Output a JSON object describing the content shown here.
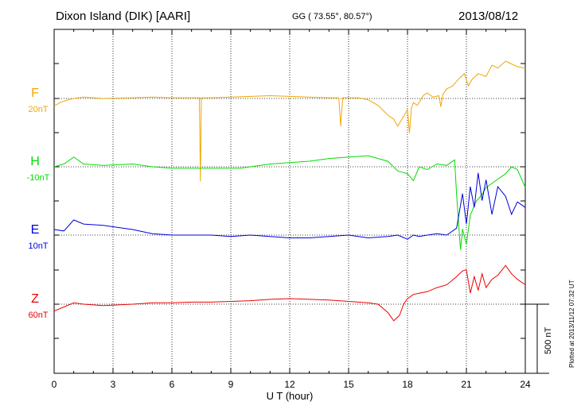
{
  "header": {
    "station": "Dixon Island (DIK)  [AARI]",
    "coords": "GG ( 73.55°,  80.57°)",
    "date": "2013/08/12",
    "plotted": "Plotted at 2013/11/12 07:32 UT"
  },
  "chart_data": {
    "type": "line",
    "title": "Dixon Island (DIK)  [AARI]",
    "xlabel": "U T (hour)",
    "ylabel": "",
    "xlim": [
      0,
      24
    ],
    "xticks": [
      "0",
      "3",
      "6",
      "9",
      "12",
      "15",
      "18",
      "21",
      "24"
    ],
    "grid": true,
    "scale_bar_label": "500 nT",
    "scale_bar_nT": 500,
    "series": [
      {
        "name": "F",
        "offset": "20nT",
        "color": "#f0a800",
        "baseline_nT": 0,
        "x": [
          0,
          0.3,
          0.7,
          1.0,
          1.5,
          2.5,
          4,
          5,
          6,
          7,
          7.4,
          7.45,
          7.5,
          8,
          9,
          10,
          11,
          12,
          13,
          14,
          14.5,
          14.6,
          14.7,
          15,
          15.5,
          16,
          16.5,
          17,
          17.3,
          17.5,
          17.8,
          18.0,
          18.1,
          18.2,
          18.3,
          18.5,
          18.8,
          19.0,
          19.3,
          19.6,
          19.7,
          19.8,
          20.0,
          20.3,
          20.6,
          20.9,
          21.1,
          21.3,
          21.6,
          22.0,
          22.3,
          22.6,
          23.0,
          23.3,
          23.6,
          24
        ],
        "y": [
          -55,
          -30,
          -10,
          0,
          10,
          0,
          5,
          10,
          5,
          5,
          5,
          -600,
          5,
          5,
          10,
          15,
          20,
          15,
          10,
          5,
          5,
          -200,
          5,
          5,
          5,
          -10,
          -50,
          -120,
          -150,
          -200,
          -130,
          -80,
          -250,
          -70,
          -30,
          -50,
          20,
          40,
          10,
          20,
          -60,
          30,
          70,
          90,
          140,
          180,
          90,
          140,
          180,
          160,
          240,
          220,
          270,
          250,
          230,
          220
        ]
      },
      {
        "name": "H",
        "offset": "-10nT",
        "color": "#00dd00",
        "baseline_nT": -1000,
        "x": [
          0,
          0.5,
          1.0,
          1.5,
          2.5,
          4,
          5,
          6,
          7,
          8,
          9,
          9.5,
          10,
          11,
          12,
          13,
          14,
          15,
          16,
          16.5,
          17,
          17.5,
          18.0,
          18.3,
          18.6,
          19,
          19.5,
          20,
          20.4,
          20.5,
          20.6,
          20.7,
          20.8,
          21.0,
          21.2,
          21.5,
          21.8,
          22.0,
          22.5,
          23,
          23.3,
          23.6,
          24
        ],
        "y": [
          -1000,
          -980,
          -930,
          -980,
          -990,
          -980,
          -1000,
          -1010,
          -1010,
          -1010,
          -1010,
          -1010,
          -1000,
          -980,
          -970,
          -960,
          -940,
          -930,
          -920,
          -940,
          -960,
          -1030,
          -1050,
          -1100,
          -1000,
          -1020,
          -980,
          -990,
          -950,
          -1200,
          -1400,
          -1600,
          -1450,
          -1560,
          -1350,
          -1250,
          -1200,
          -1150,
          -1100,
          -1050,
          -1000,
          -1020,
          -1150
        ]
      },
      {
        "name": "E",
        "offset": "10nT",
        "color": "#0000dd",
        "baseline_nT": -2000,
        "x": [
          0,
          0.5,
          1.0,
          1.5,
          2.5,
          4,
          5,
          6,
          7,
          8,
          9,
          10,
          11,
          12,
          13,
          14,
          15,
          16,
          17,
          17.5,
          18.0,
          18.3,
          18.6,
          19,
          19.5,
          20,
          20.5,
          20.8,
          21.0,
          21.2,
          21.4,
          21.6,
          21.8,
          22,
          22.3,
          22.6,
          23,
          23.3,
          23.6,
          24
        ],
        "y": [
          -1960,
          -1970,
          -1890,
          -1920,
          -1930,
          -1960,
          -1990,
          -2000,
          -2000,
          -2000,
          -2010,
          -2000,
          -2010,
          -2020,
          -2020,
          -2010,
          -2000,
          -2020,
          -2010,
          -2000,
          -2030,
          -2000,
          -2010,
          -2000,
          -1990,
          -2000,
          -1950,
          -1700,
          -1920,
          -1650,
          -1800,
          -1550,
          -1750,
          -1600,
          -1850,
          -1650,
          -1720,
          -1850,
          -1760,
          -1800
        ]
      },
      {
        "name": "Z",
        "offset": "60nT",
        "color": "#ee0000",
        "baseline_nT": -3000,
        "x": [
          0,
          0.5,
          1.0,
          1.5,
          2.5,
          4,
          5,
          6,
          7,
          8,
          9,
          10,
          11,
          12,
          13,
          14,
          15,
          16,
          16.5,
          17,
          17.3,
          17.6,
          17.8,
          18.0,
          18.3,
          18.6,
          19,
          19.5,
          20,
          20.5,
          20.8,
          21.0,
          21.2,
          21.4,
          21.6,
          21.8,
          22,
          22.3,
          22.6,
          23,
          23.3,
          23.6,
          24
        ],
        "y": [
          -3050,
          -3020,
          -2990,
          -3000,
          -3010,
          -3000,
          -2990,
          -2990,
          -2985,
          -2985,
          -2980,
          -2975,
          -2965,
          -2960,
          -2965,
          -2970,
          -2980,
          -2990,
          -3000,
          -3060,
          -3120,
          -3080,
          -3000,
          -2960,
          -2930,
          -2920,
          -2910,
          -2880,
          -2860,
          -2800,
          -2760,
          -2750,
          -2920,
          -2800,
          -2900,
          -2780,
          -2880,
          -2820,
          -2790,
          -2720,
          -2780,
          -2820,
          -2860
        ]
      }
    ]
  }
}
